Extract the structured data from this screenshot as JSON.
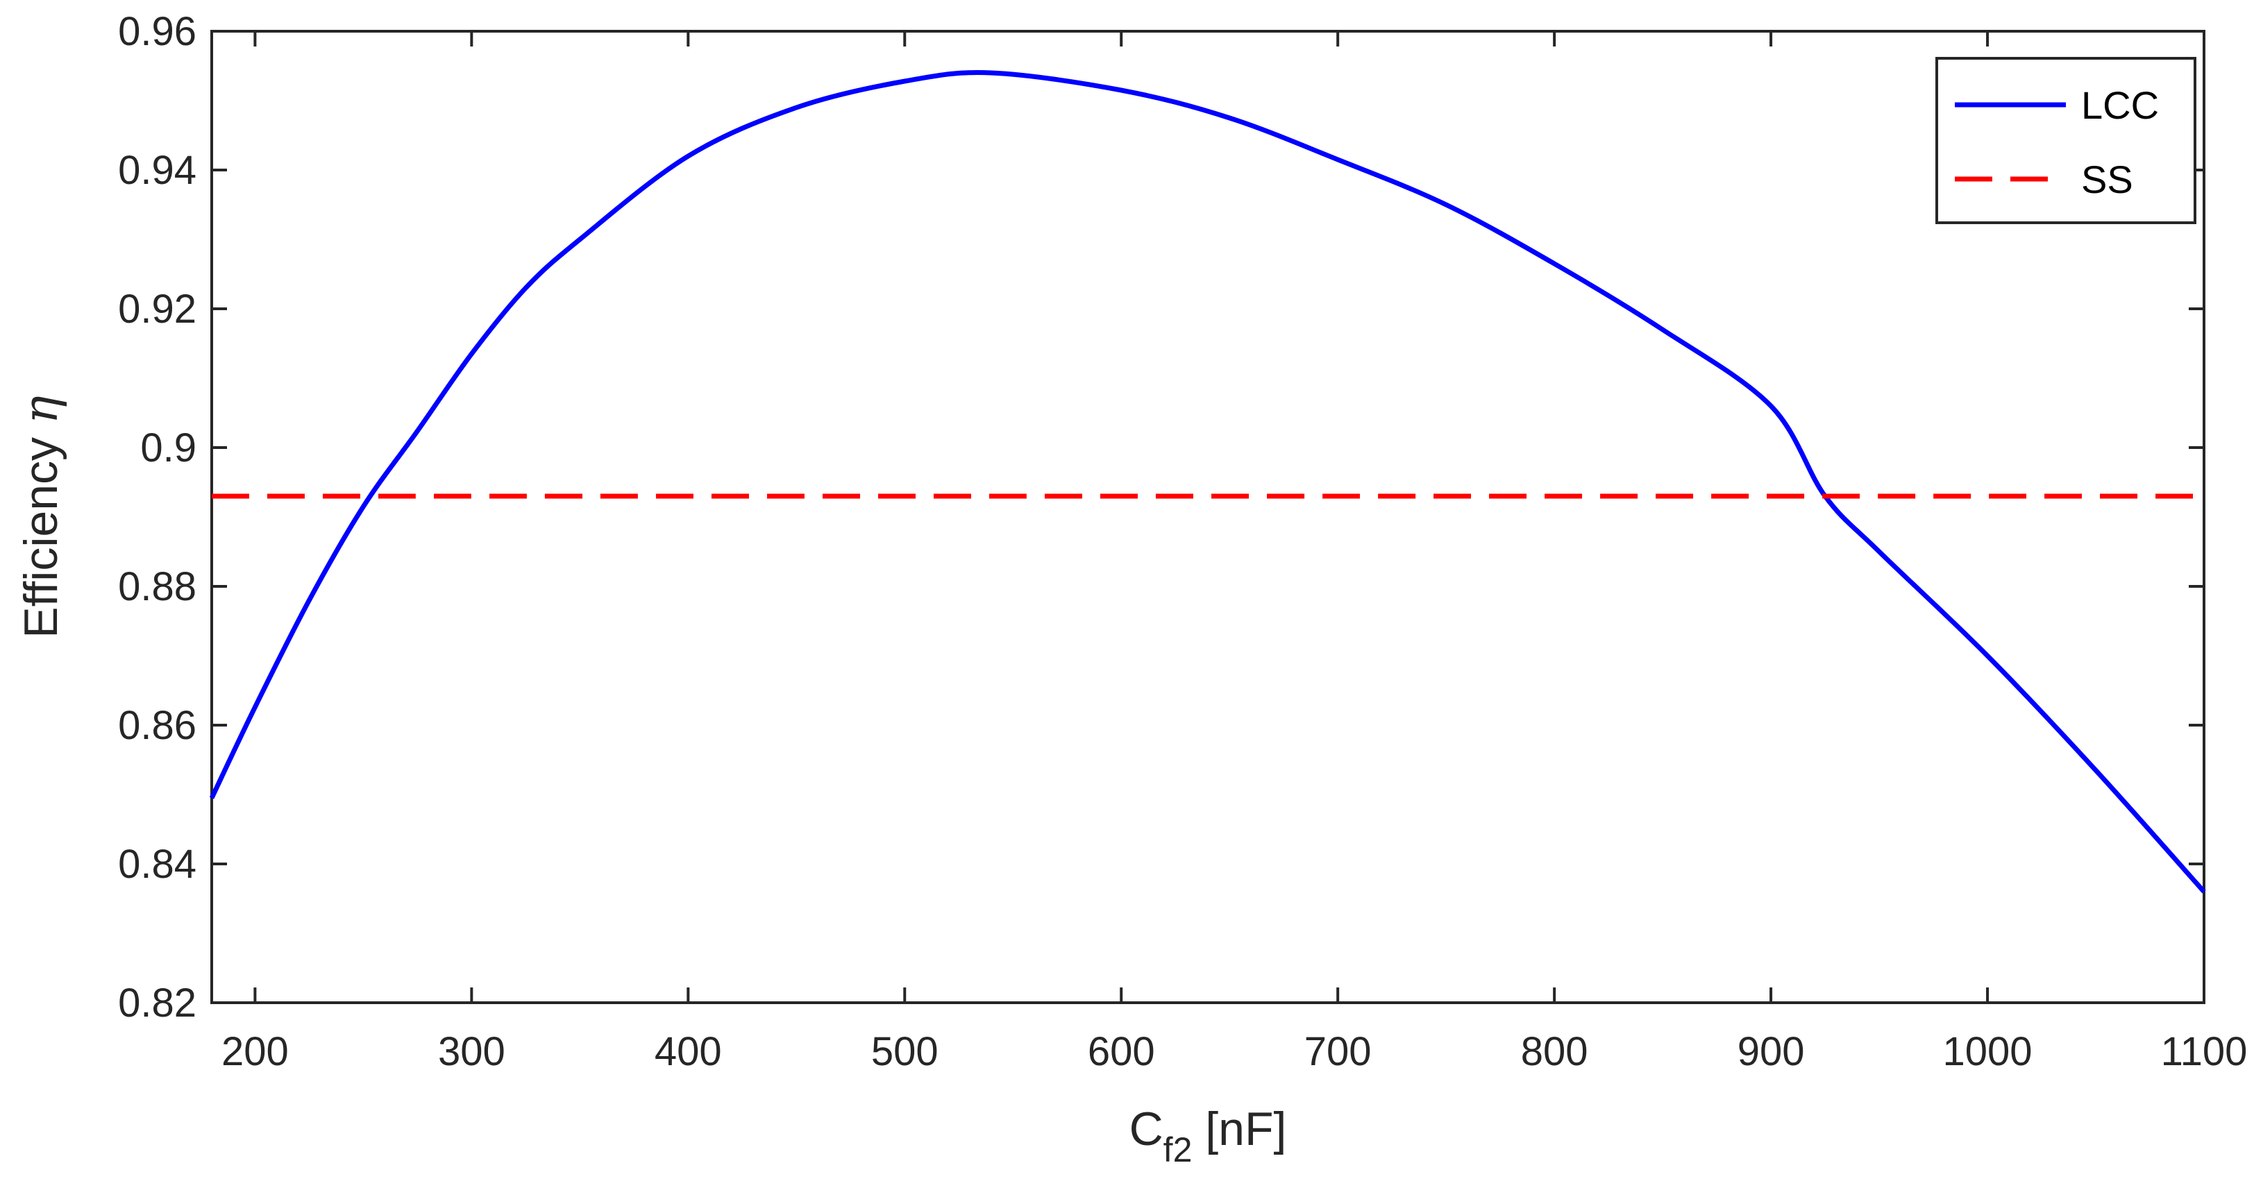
{
  "chart_data": {
    "type": "line",
    "xlabel": {
      "main": "C",
      "sub": "f2",
      "unit": " [nF]"
    },
    "ylabel": {
      "main": "Efficiency ",
      "symbol": "η"
    },
    "xlim": [
      180,
      1100
    ],
    "ylim": [
      0.82,
      0.96
    ],
    "x_ticks": [
      {
        "value": 200,
        "label": "200"
      },
      {
        "value": 300,
        "label": "300"
      },
      {
        "value": 400,
        "label": "400"
      },
      {
        "value": 500,
        "label": "500"
      },
      {
        "value": 600,
        "label": "600"
      },
      {
        "value": 700,
        "label": "700"
      },
      {
        "value": 800,
        "label": "800"
      },
      {
        "value": 900,
        "label": "900"
      },
      {
        "value": 1000,
        "label": "1000"
      },
      {
        "value": 1100,
        "label": "1100"
      }
    ],
    "y_ticks": [
      {
        "value": 0.82,
        "label": "0.82"
      },
      {
        "value": 0.84,
        "label": "0.84"
      },
      {
        "value": 0.86,
        "label": "0.86"
      },
      {
        "value": 0.88,
        "label": "0.88"
      },
      {
        "value": 0.9,
        "label": "0.9"
      },
      {
        "value": 0.92,
        "label": "0.92"
      },
      {
        "value": 0.94,
        "label": "0.94"
      },
      {
        "value": 0.96,
        "label": "0.96"
      }
    ],
    "grid": false,
    "legend_position": "top-right",
    "series": [
      {
        "name": "LCC",
        "color": "#0000ff",
        "style": "solid",
        "x": [
          180,
          200,
          225,
          250,
          275,
          300,
          325,
          350,
          400,
          450,
          500,
          540,
          600,
          650,
          700,
          750,
          800,
          850,
          900,
          925,
          950,
          1000,
          1050,
          1100
        ],
        "y": [
          0.8495,
          0.8626,
          0.878,
          0.8915,
          0.9024,
          0.9135,
          0.923,
          0.93,
          0.942,
          0.949,
          0.9528,
          0.954,
          0.9515,
          0.9475,
          0.9415,
          0.935,
          0.9265,
          0.917,
          0.906,
          0.893,
          0.885,
          0.87,
          0.8535,
          0.836
        ]
      },
      {
        "name": "SS",
        "color": "#ff0000",
        "style": "dashed",
        "x": [
          180,
          1100
        ],
        "y": [
          0.893,
          0.893
        ]
      }
    ]
  }
}
